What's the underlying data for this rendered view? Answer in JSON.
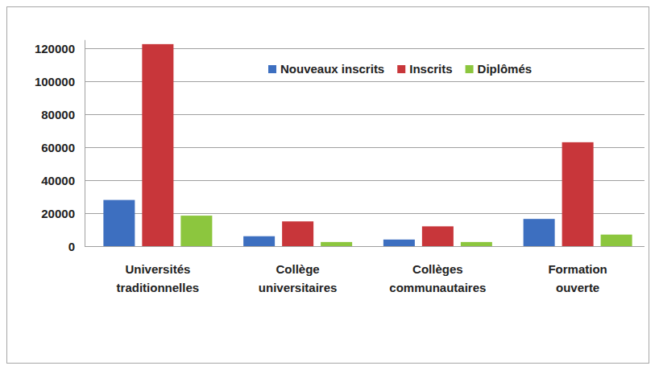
{
  "chart_data": {
    "type": "bar",
    "categories": [
      "Universités traditionnelles",
      "Collège universitaires",
      "Collèges communautaires",
      "Formation ouverte"
    ],
    "series": [
      {
        "name": "Nouveaux inscrits",
        "color": "#3d6fc0",
        "values": [
          28000,
          6000,
          4000,
          16500
        ]
      },
      {
        "name": "Inscrits",
        "color": "#c8363a",
        "values": [
          122500,
          15000,
          12000,
          63000
        ]
      },
      {
        "name": "Diplômés",
        "color": "#8cc63e",
        "values": [
          18500,
          2500,
          2500,
          7000
        ]
      }
    ],
    "ylim": [
      0,
      125000
    ],
    "yticks": [
      0,
      20000,
      40000,
      60000,
      80000,
      100000,
      120000
    ],
    "grid": true,
    "legend": "top-right"
  }
}
